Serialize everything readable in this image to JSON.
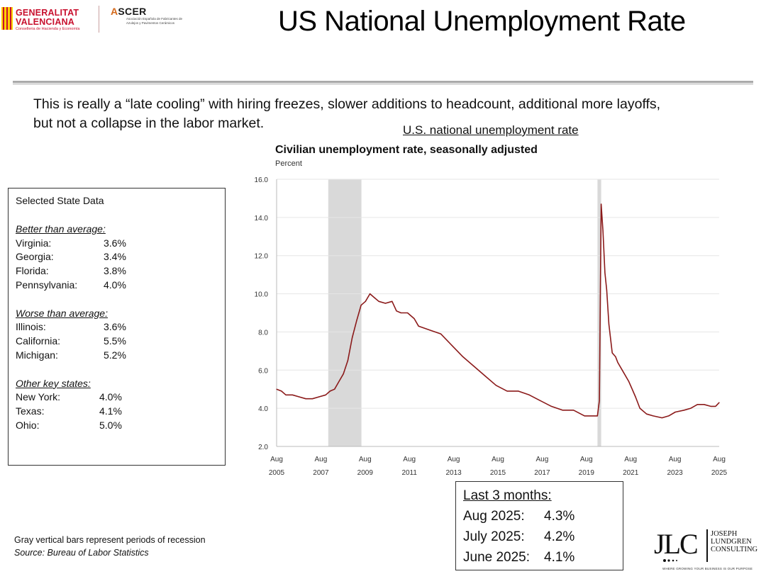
{
  "header": {
    "logo_gv": {
      "line1": "GENERALITAT",
      "line2": "VALENCIANA",
      "subtitle": "Conselleria de Hacienda y Economía"
    },
    "logo_ascer": {
      "name_first": "A",
      "name_rest": "SCER",
      "subtitle": "Asociación Española de Fabricantes de Azulejos y Pavimentos Cerámicos"
    },
    "title": "US National Unemployment Rate"
  },
  "intro_text": "This is really a “late cooling” with hiring freezes, slower additions to headcount, additional more layoffs, but not a collapse in the labor market.",
  "chart_link": "U.S. national unemployment rate",
  "state_data": {
    "title": "Selected State Data",
    "groups": [
      {
        "label": "Better than average:",
        "rows": [
          {
            "state": "Virginia:",
            "value": "3.6%"
          },
          {
            "state": "Georgia:",
            "value": "3.4%"
          },
          {
            "state": "Florida:",
            "value": "3.8%"
          },
          {
            "state": "Pennsylvania:",
            "value": "4.0%"
          }
        ]
      },
      {
        "label": "Worse than average:",
        "rows": [
          {
            "state": "Illinois:",
            "value": "3.6%"
          },
          {
            "state": "California:",
            "value": "5.5%"
          },
          {
            "state": "Michigan:",
            "value": "5.2%"
          }
        ]
      },
      {
        "label": "Other key states:",
        "rows": [
          {
            "state": "New York:",
            "value": "4.0%"
          },
          {
            "state": "Texas:",
            "value": "4.1%"
          },
          {
            "state": "Ohio:",
            "value": "5.0%"
          }
        ]
      }
    ]
  },
  "footnote": {
    "line1": "Gray vertical bars represent periods of recession",
    "line2": "Source: Bureau of Labor Statistics"
  },
  "last_months": {
    "title": "Last 3 months:",
    "rows": [
      {
        "month": "Aug 2025:",
        "value": "4.3%"
      },
      {
        "month": "July 2025:",
        "value": "4.2%"
      },
      {
        "month": "June 2025:",
        "value": "4.1%"
      }
    ]
  },
  "jlc_logo": {
    "letters": "JLC",
    "name_lines": [
      "JOSEPH",
      "LUNDGREN",
      "CONSULTING"
    ],
    "tagline": "WHERE GROWING YOUR BUSINESS IS OUR PURPOSE"
  },
  "chart_data": {
    "type": "line",
    "title": "Civilian unemployment rate, seasonally adjusted",
    "ylabel": "Percent",
    "xlabel": "",
    "ylim": [
      2.0,
      16.0
    ],
    "xlim": [
      2005.583,
      2025.583
    ],
    "y_ticks": [
      "2.0",
      "4.0",
      "6.0",
      "8.0",
      "10.0",
      "12.0",
      "14.0",
      "16.0"
    ],
    "x_ticks": [
      {
        "year": 2005.583,
        "month": "Aug",
        "label_year": "2005"
      },
      {
        "year": 2007.583,
        "month": "Aug",
        "label_year": "2007"
      },
      {
        "year": 2009.583,
        "month": "Aug",
        "label_year": "2009"
      },
      {
        "year": 2011.583,
        "month": "Aug",
        "label_year": "2011"
      },
      {
        "year": 2013.583,
        "month": "Aug",
        "label_year": "2013"
      },
      {
        "year": 2015.583,
        "month": "Aug",
        "label_year": "2015"
      },
      {
        "year": 2017.583,
        "month": "Aug",
        "label_year": "2017"
      },
      {
        "year": 2019.583,
        "month": "Aug",
        "label_year": "2019"
      },
      {
        "year": 2021.583,
        "month": "Aug",
        "label_year": "2021"
      },
      {
        "year": 2023.583,
        "month": "Aug",
        "label_year": "2023"
      },
      {
        "year": 2025.583,
        "month": "Aug",
        "label_year": "2025"
      }
    ],
    "recessions": [
      [
        2007.917,
        2009.417
      ],
      [
        2020.083,
        2020.25
      ]
    ],
    "grid": true,
    "series": [
      {
        "name": "Unemployment rate",
        "color": "#8b1a1a",
        "x": [
          2005.583,
          2005.8,
          2006.0,
          2006.3,
          2006.6,
          2006.9,
          2007.2,
          2007.5,
          2007.8,
          2008.0,
          2008.2,
          2008.4,
          2008.6,
          2008.8,
          2009.0,
          2009.2,
          2009.4,
          2009.6,
          2009.8,
          2010.0,
          2010.2,
          2010.5,
          2010.8,
          2011.0,
          2011.2,
          2011.5,
          2011.8,
          2012.0,
          2012.5,
          2013.0,
          2013.5,
          2014.0,
          2014.5,
          2015.0,
          2015.5,
          2016.0,
          2016.5,
          2017.0,
          2017.5,
          2018.0,
          2018.5,
          2019.0,
          2019.5,
          2019.9,
          2020.08,
          2020.17,
          2020.25,
          2020.33,
          2020.42,
          2020.5,
          2020.6,
          2020.75,
          2020.9,
          2021.0,
          2021.2,
          2021.5,
          2021.8,
          2022.0,
          2022.3,
          2022.6,
          2023.0,
          2023.3,
          2023.6,
          2024.0,
          2024.3,
          2024.6,
          2024.9,
          2025.2,
          2025.42,
          2025.5,
          2025.583
        ],
        "values": [
          5.0,
          4.9,
          4.7,
          4.7,
          4.6,
          4.5,
          4.5,
          4.6,
          4.7,
          4.9,
          5.0,
          5.4,
          5.8,
          6.5,
          7.7,
          8.6,
          9.4,
          9.6,
          10.0,
          9.8,
          9.6,
          9.5,
          9.6,
          9.1,
          9.0,
          9.0,
          8.7,
          8.3,
          8.1,
          7.9,
          7.3,
          6.7,
          6.2,
          5.7,
          5.2,
          4.9,
          4.9,
          4.7,
          4.4,
          4.1,
          3.9,
          3.9,
          3.6,
          3.6,
          3.6,
          4.4,
          14.7,
          13.3,
          11.1,
          10.2,
          8.4,
          6.9,
          6.7,
          6.4,
          6.0,
          5.4,
          4.6,
          4.0,
          3.7,
          3.6,
          3.5,
          3.6,
          3.8,
          3.9,
          4.0,
          4.2,
          4.2,
          4.1,
          4.1,
          4.2,
          4.3
        ]
      }
    ]
  }
}
